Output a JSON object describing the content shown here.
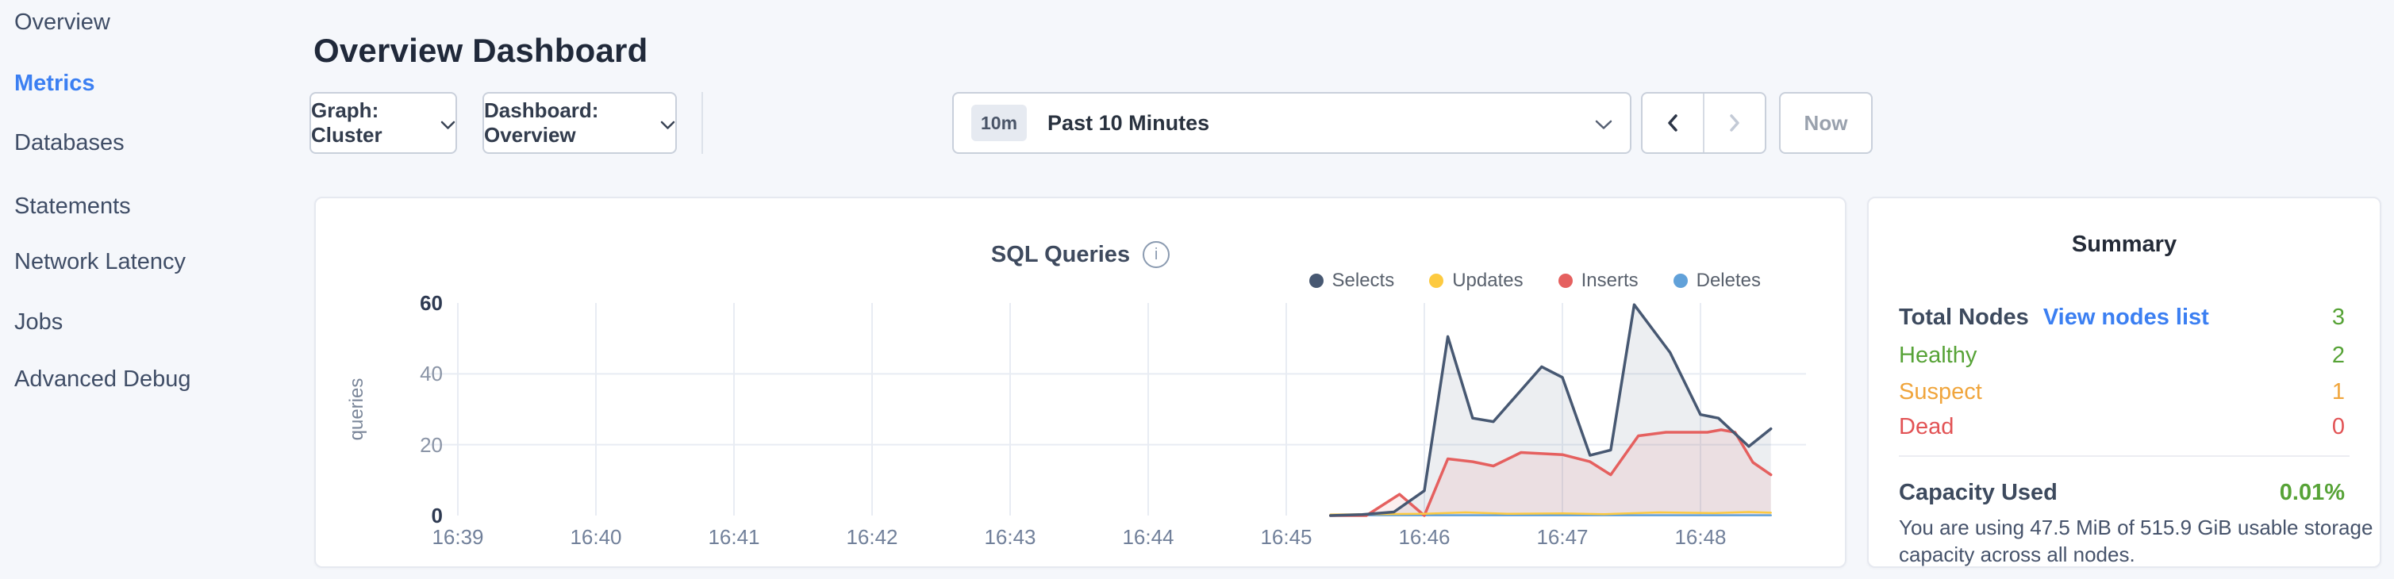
{
  "sidebar": {
    "items": [
      {
        "label": "Overview",
        "active": false
      },
      {
        "label": "Metrics",
        "active": true
      },
      {
        "label": "Databases",
        "active": false
      },
      {
        "label": "Statements",
        "active": false
      },
      {
        "label": "Network Latency",
        "active": false
      },
      {
        "label": "Jobs",
        "active": false
      },
      {
        "label": "Advanced Debug",
        "active": false
      }
    ]
  },
  "header": {
    "title": "Overview Dashboard"
  },
  "toolbar": {
    "graph_dropdown": {
      "label": "Graph: Cluster"
    },
    "dashboard_dropdown": {
      "label": "Dashboard: Overview"
    },
    "time_selector": {
      "badge": "10m",
      "label": "Past 10 Minutes"
    },
    "prev_button_enabled": true,
    "next_button_enabled": false,
    "now_button": "Now"
  },
  "chart_data": {
    "type": "area",
    "title": "SQL Queries",
    "ylabel": "queries",
    "x_ticks": [
      "16:39",
      "16:40",
      "16:41",
      "16:42",
      "16:43",
      "16:44",
      "16:45",
      "16:46",
      "16:47",
      "16:48"
    ],
    "y_ticks": [
      0,
      20,
      40,
      60
    ],
    "ylim": [
      0,
      60
    ],
    "grid": {
      "horizontal_at": [
        20,
        40
      ],
      "vertical": "every minute"
    },
    "legend_position": "top-right",
    "points_format": "[minutes after 16:39, queries]; data begins ~16:45:20 and ends ~16:48:30",
    "series": [
      {
        "name": "Selects",
        "color": "#475872",
        "fill": "rgba(71,88,114,0.10)",
        "stroke_width": 3.5,
        "points": [
          [
            6.32,
            0
          ],
          [
            6.55,
            0.3
          ],
          [
            6.78,
            1
          ],
          [
            7.0,
            7
          ],
          [
            7.17,
            50.5
          ],
          [
            7.35,
            27.5
          ],
          [
            7.5,
            26.5
          ],
          [
            7.85,
            42
          ],
          [
            8.0,
            39
          ],
          [
            8.2,
            17
          ],
          [
            8.35,
            18.5
          ],
          [
            8.52,
            59.5
          ],
          [
            8.78,
            46
          ],
          [
            9.0,
            28.5
          ],
          [
            9.13,
            27.5
          ],
          [
            9.35,
            19.5
          ],
          [
            9.51,
            24.5
          ]
        ]
      },
      {
        "name": "Updates",
        "color": "#fdca40",
        "stroke_width": 2.5,
        "points": [
          [
            6.32,
            0.3
          ],
          [
            7.0,
            0.5
          ],
          [
            7.3,
            0.9
          ],
          [
            7.6,
            0.5
          ],
          [
            8.0,
            0.6
          ],
          [
            8.3,
            0.4
          ],
          [
            8.7,
            0.9
          ],
          [
            9.1,
            0.7
          ],
          [
            9.35,
            1.0
          ],
          [
            9.51,
            0.8
          ]
        ]
      },
      {
        "name": "Inserts",
        "color": "#e5605f",
        "fill": "rgba(229,96,95,0.10)",
        "stroke_width": 3.5,
        "points": [
          [
            6.32,
            0
          ],
          [
            6.58,
            0
          ],
          [
            6.82,
            6
          ],
          [
            7.0,
            0
          ],
          [
            7.17,
            16
          ],
          [
            7.35,
            15.2
          ],
          [
            7.5,
            14
          ],
          [
            7.7,
            17.8
          ],
          [
            8.0,
            17.2
          ],
          [
            8.2,
            15.2
          ],
          [
            8.35,
            11.5
          ],
          [
            8.55,
            22.5
          ],
          [
            8.75,
            23.5
          ],
          [
            9.05,
            23.5
          ],
          [
            9.15,
            24.2
          ],
          [
            9.25,
            23.5
          ],
          [
            9.38,
            15
          ],
          [
            9.51,
            11.5
          ]
        ]
      },
      {
        "name": "Deletes",
        "color": "#61a1d9",
        "stroke_width": 2.5,
        "points": [
          [
            6.32,
            0.1
          ],
          [
            9.51,
            0.1
          ]
        ]
      }
    ]
  },
  "summary": {
    "title": "Summary",
    "rows": [
      {
        "label": "Total Nodes",
        "link": "View nodes list",
        "value": "3",
        "label_color": "#3d4a5e",
        "value_color": "#57a337",
        "label_bold": true
      },
      {
        "label": "Healthy",
        "value": "2",
        "label_color": "#57a337",
        "value_color": "#57a337",
        "label_bold": false
      },
      {
        "label": "Suspect",
        "value": "1",
        "label_color": "#f0a53c",
        "value_color": "#f0a53c",
        "label_bold": false
      },
      {
        "label": "Dead",
        "value": "0",
        "label_color": "#e25355",
        "value_color": "#e25355",
        "label_bold": false
      }
    ],
    "capacity": {
      "label": "Capacity Used",
      "value": "0.01%",
      "value_color": "#57a337",
      "description_line1": "You are using 47.5 MiB of 515.9 GiB usable storage",
      "description_line2": "capacity across all nodes."
    }
  }
}
